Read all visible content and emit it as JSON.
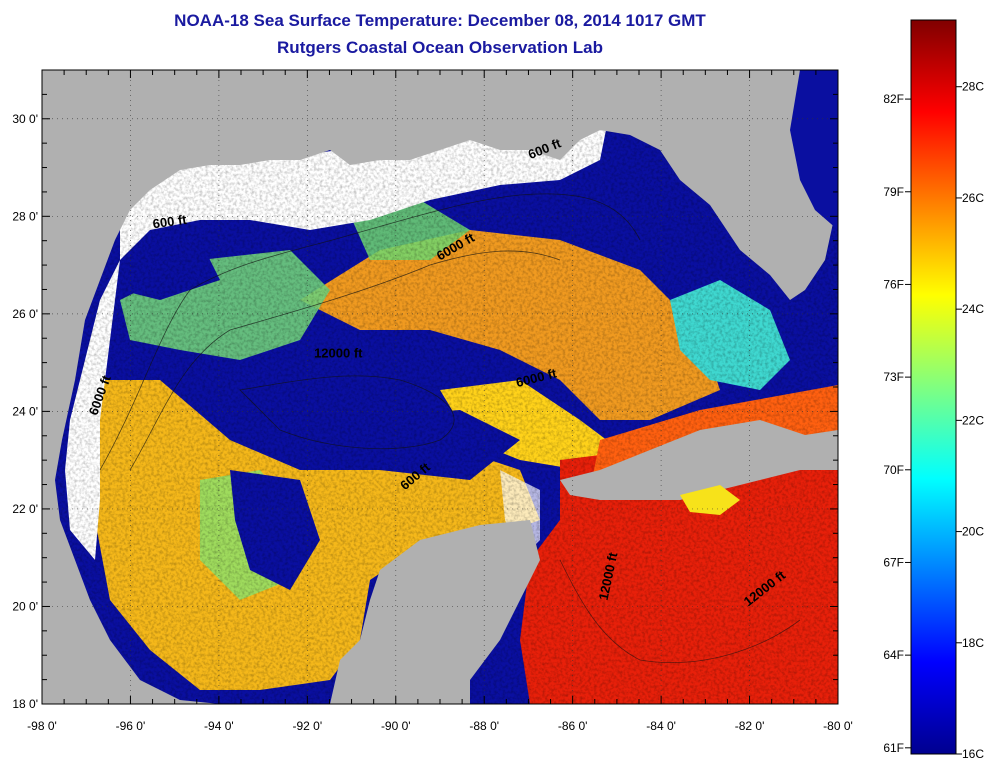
{
  "header": {
    "title": "NOAA-18 Sea Surface Temperature:  December 08, 2014 1017 GMT",
    "subtitle": "Rutgers Coastal Ocean Observation Lab"
  },
  "map": {
    "lon_range": [
      -98,
      -80
    ],
    "lat_range": [
      18,
      31
    ],
    "x_ticks": [
      {
        "lon": -98,
        "label": "-98 0'"
      },
      {
        "lon": -96,
        "label": "-96 0'"
      },
      {
        "lon": -94,
        "label": "-94 0'"
      },
      {
        "lon": -92,
        "label": "-92 0'"
      },
      {
        "lon": -90,
        "label": "-90 0'"
      },
      {
        "lon": -88,
        "label": "-88 0'"
      },
      {
        "lon": -86,
        "label": "-86 0'"
      },
      {
        "lon": -84,
        "label": "-84 0'"
      },
      {
        "lon": -82,
        "label": "-82 0'"
      },
      {
        "lon": -80,
        "label": "-80 0'"
      }
    ],
    "y_ticks": [
      {
        "lat": 18,
        "label": "18 0'"
      },
      {
        "lat": 20,
        "label": "20 0'"
      },
      {
        "lat": 22,
        "label": "22 0'"
      },
      {
        "lat": 24,
        "label": "24 0'"
      },
      {
        "lat": 26,
        "label": "26 0'"
      },
      {
        "lat": 28,
        "label": "28 0'"
      },
      {
        "lat": 30,
        "label": "30 0'"
      }
    ],
    "isobath_labels": [
      {
        "text": "600 ft",
        "lon": -86.6,
        "lat": 29.3,
        "rot": -22
      },
      {
        "text": "600 ft",
        "lon": -95.1,
        "lat": 27.8,
        "rot": -8
      },
      {
        "text": "6000 ft",
        "lon": -88.6,
        "lat": 27.3,
        "rot": -30
      },
      {
        "text": "12000 ft",
        "lon": -91.3,
        "lat": 25.1,
        "rot": 0
      },
      {
        "text": "6000 ft",
        "lon": -86.8,
        "lat": 24.6,
        "rot": -14
      },
      {
        "text": "6000 ft",
        "lon": -96.6,
        "lat": 24.3,
        "rot": -70
      },
      {
        "text": "600 ft",
        "lon": -89.5,
        "lat": 22.6,
        "rot": -40
      },
      {
        "text": "12000 ft",
        "lon": -85.1,
        "lat": 20.6,
        "rot": -78
      },
      {
        "text": "12000 ft",
        "lon": -81.6,
        "lat": 20.3,
        "rot": -38
      }
    ],
    "colors": {
      "land": "#b0b0b0",
      "cloud": "#ffffff"
    }
  },
  "colorbar": {
    "range_c": [
      16,
      29.2
    ],
    "celsius_labels": [
      {
        "value": 28,
        "label": "28C"
      },
      {
        "value": 26,
        "label": "26C"
      },
      {
        "value": 24,
        "label": "24C"
      },
      {
        "value": 22,
        "label": "22C"
      },
      {
        "value": 20,
        "label": "20C"
      },
      {
        "value": 18,
        "label": "18C"
      },
      {
        "value": 16,
        "label": "16C"
      }
    ],
    "fahrenheit_labels": [
      {
        "value": 82,
        "label": "82F"
      },
      {
        "value": 79,
        "label": "79F"
      },
      {
        "value": 76,
        "label": "76F"
      },
      {
        "value": 73,
        "label": "73F"
      },
      {
        "value": 70,
        "label": "70F"
      },
      {
        "value": 67,
        "label": "67F"
      },
      {
        "value": 64,
        "label": "64F"
      },
      {
        "value": 61,
        "label": "61F"
      }
    ],
    "palette": [
      "#00008f",
      "#0000ff",
      "#0080ff",
      "#00ffff",
      "#80ff80",
      "#ffff00",
      "#ff8000",
      "#ff0000",
      "#800000"
    ]
  }
}
